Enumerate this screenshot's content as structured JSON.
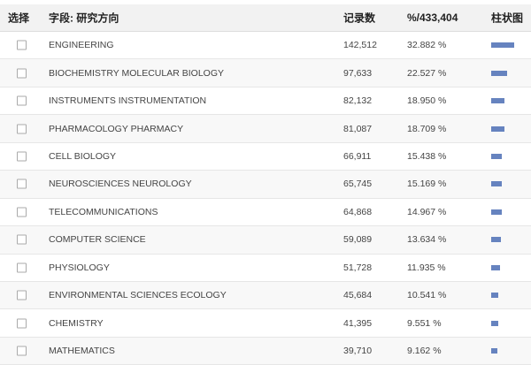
{
  "header": {
    "select": "选择",
    "field": "字段: 研究方向",
    "records": "记录数",
    "percent": "%/433,404",
    "bar_chart": "柱状图"
  },
  "bar_color": "#6683bf",
  "rows": [
    {
      "name": "ENGINEERING",
      "count": "142,512",
      "percent": "32.882 %",
      "value": 32.882
    },
    {
      "name": "BIOCHEMISTRY MOLECULAR BIOLOGY",
      "count": "97,633",
      "percent": "22.527 %",
      "value": 22.527
    },
    {
      "name": "INSTRUMENTS INSTRUMENTATION",
      "count": "82,132",
      "percent": "18.950 %",
      "value": 18.95
    },
    {
      "name": "PHARMACOLOGY PHARMACY",
      "count": "81,087",
      "percent": "18.709 %",
      "value": 18.709
    },
    {
      "name": "CELL BIOLOGY",
      "count": "66,911",
      "percent": "15.438 %",
      "value": 15.438
    },
    {
      "name": "NEUROSCIENCES NEUROLOGY",
      "count": "65,745",
      "percent": "15.169 %",
      "value": 15.169
    },
    {
      "name": "TELECOMMUNICATIONS",
      "count": "64,868",
      "percent": "14.967 %",
      "value": 14.967
    },
    {
      "name": "COMPUTER SCIENCE",
      "count": "59,089",
      "percent": "13.634 %",
      "value": 13.634
    },
    {
      "name": "PHYSIOLOGY",
      "count": "51,728",
      "percent": "11.935 %",
      "value": 11.935
    },
    {
      "name": "ENVIRONMENTAL SCIENCES ECOLOGY",
      "count": "45,684",
      "percent": "10.541 %",
      "value": 10.541
    },
    {
      "name": "CHEMISTRY",
      "count": "41,395",
      "percent": "9.551 %",
      "value": 9.551
    },
    {
      "name": "MATHEMATICS",
      "count": "39,710",
      "percent": "9.162 %",
      "value": 9.162
    }
  ]
}
